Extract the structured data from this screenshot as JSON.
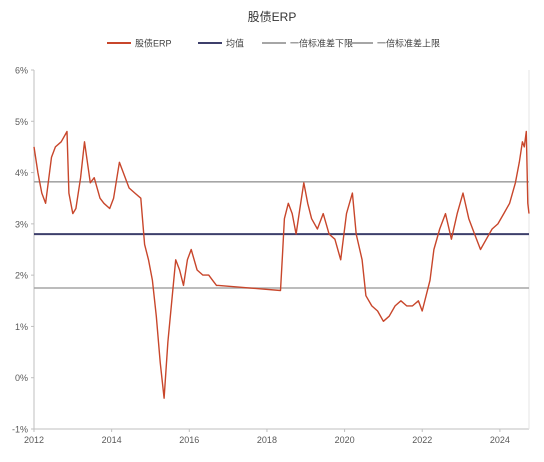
{
  "chart_data": {
    "type": "line",
    "title": "股债ERP",
    "xlabel": "",
    "ylabel": "",
    "xlim": [
      2012,
      2024.75
    ],
    "ylim": [
      -1,
      6
    ],
    "x_ticks": [
      "2012",
      "2014",
      "2016",
      "2018",
      "2020",
      "2022",
      "2024"
    ],
    "y_ticks": [
      "-1%",
      "0%",
      "1%",
      "2%",
      "3%",
      "4%",
      "5%",
      "6%"
    ],
    "legend_position": "top-center",
    "grid": false,
    "series": [
      {
        "name": "股债ERP",
        "color": "#c8462b",
        "x": [
          2012.0,
          2012.1,
          2012.2,
          2012.3,
          2012.45,
          2012.55,
          2012.7,
          2012.85,
          2012.9,
          2013.0,
          2013.08,
          2013.2,
          2013.3,
          2013.45,
          2013.55,
          2013.7,
          2013.8,
          2013.95,
          2014.05,
          2014.2,
          2014.3,
          2014.45,
          2014.6,
          2014.75,
          2014.85,
          2014.95,
          2015.05,
          2015.15,
          2015.25,
          2015.35,
          2015.45,
          2015.55,
          2015.65,
          2015.75,
          2015.85,
          2015.95,
          2016.05,
          2016.2,
          2016.35,
          2016.5,
          2016.6,
          2016.7,
          2016.75,
          2018.35,
          2018.4,
          2018.45,
          2018.55,
          2018.65,
          2018.75,
          2018.85,
          2018.95,
          2019.05,
          2019.15,
          2019.3,
          2019.45,
          2019.6,
          2019.75,
          2019.9,
          2020.05,
          2020.2,
          2020.3,
          2020.45,
          2020.55,
          2020.7,
          2020.85,
          2021.0,
          2021.15,
          2021.3,
          2021.45,
          2021.6,
          2021.75,
          2021.9,
          2022.0,
          2022.1,
          2022.2,
          2022.3,
          2022.45,
          2022.6,
          2022.75,
          2022.9,
          2023.05,
          2023.2,
          2023.35,
          2023.5,
          2023.65,
          2023.8,
          2023.95,
          2024.1,
          2024.25,
          2024.4,
          2024.5,
          2024.58,
          2024.63,
          2024.68,
          2024.72,
          2024.75
        ],
        "values": [
          4.5,
          4.0,
          3.6,
          3.4,
          4.3,
          4.5,
          4.6,
          4.8,
          3.6,
          3.2,
          3.3,
          3.9,
          4.6,
          3.8,
          3.9,
          3.5,
          3.4,
          3.3,
          3.5,
          4.2,
          4.0,
          3.7,
          3.6,
          3.5,
          2.6,
          2.3,
          1.9,
          1.2,
          0.3,
          -0.4,
          0.7,
          1.5,
          2.3,
          2.1,
          1.8,
          2.3,
          2.5,
          2.1,
          2.0,
          2.0,
          1.9,
          1.8,
          1.8,
          1.7,
          2.4,
          3.1,
          3.4,
          3.2,
          2.8,
          3.3,
          3.8,
          3.4,
          3.1,
          2.9,
          3.2,
          2.8,
          2.7,
          2.3,
          3.2,
          3.6,
          2.8,
          2.3,
          1.6,
          1.4,
          1.3,
          1.1,
          1.2,
          1.4,
          1.5,
          1.4,
          1.4,
          1.5,
          1.3,
          1.6,
          1.9,
          2.5,
          2.9,
          3.2,
          2.7,
          3.2,
          3.6,
          3.1,
          2.8,
          2.5,
          2.7,
          2.9,
          3.0,
          3.2,
          3.4,
          3.8,
          4.2,
          4.6,
          4.5,
          4.8,
          3.4,
          3.2
        ]
      },
      {
        "name": "均值",
        "color": "#3d3f6b",
        "x": [
          2012.0,
          2024.75
        ],
        "values": [
          2.8,
          2.8
        ]
      },
      {
        "name": "一倍标准差下限",
        "color": "#a6a6a6",
        "x": [
          2012.0,
          2024.75
        ],
        "values": [
          1.75,
          1.75
        ]
      },
      {
        "name": "一倍标准差上限",
        "color": "#a6a6a6",
        "x": [
          2012.0,
          2024.75
        ],
        "values": [
          3.82,
          3.82
        ]
      }
    ]
  }
}
